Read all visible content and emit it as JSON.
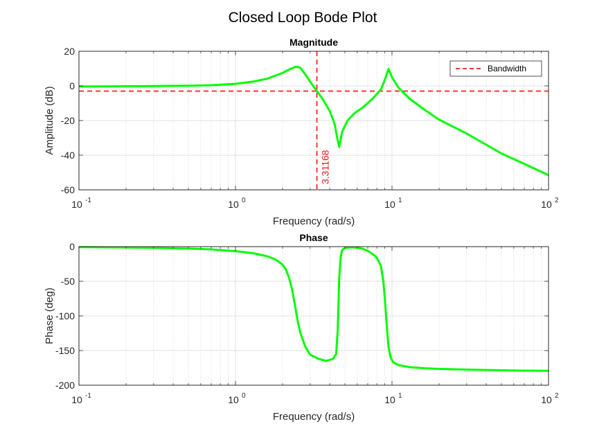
{
  "figure_title": "Closed Loop Bode Plot",
  "chart_data": [
    {
      "type": "line",
      "title": "Magnitude",
      "xlabel": "Frequency (rad/s)",
      "ylabel": "Amplitude (dB)",
      "xscale": "log",
      "xlim": [
        0.1,
        100
      ],
      "ylim": [
        -60,
        20
      ],
      "yticks": [
        20,
        0,
        -20,
        -40,
        -60
      ],
      "xticks": [
        {
          "base": "10",
          "exp": "-1"
        },
        {
          "base": "10",
          "exp": "0"
        },
        {
          "base": "10",
          "exp": "1"
        },
        {
          "base": "10",
          "exp": "2"
        }
      ],
      "grid": true,
      "legend": {
        "position": "top-right",
        "entries": [
          "Bandwidth"
        ]
      },
      "line_color": "#00ff00",
      "reference_color": "#ff3333",
      "bandwidth_line_db": -3,
      "bandwidth_frequency": 3.31168,
      "annotation": "3.31168",
      "series": [
        {
          "x": [
            0.1,
            0.2,
            0.3,
            0.5,
            0.7,
            1.0,
            1.3,
            1.6,
            2.0,
            2.2,
            2.4,
            2.5,
            2.6,
            2.8,
            3.0,
            3.31168,
            3.6,
            4.0,
            4.3,
            4.5,
            4.6,
            4.8,
            5.2,
            5.8,
            6.5,
            7.5,
            8.5,
            9.0,
            9.5,
            10.0,
            11.0,
            13.0,
            16.0,
            20.0,
            30.0,
            50.0,
            70.0,
            100.0
          ],
          "y": [
            -0.3,
            -0.2,
            -0.1,
            0.1,
            0.4,
            1.2,
            2.5,
            4.2,
            7.5,
            9.5,
            10.9,
            11.0,
            10.4,
            6.5,
            2.5,
            -3.0,
            -7.5,
            -14.5,
            -22.0,
            -31.5,
            -35.2,
            -26.5,
            -20.0,
            -15.5,
            -12.5,
            -7.5,
            -2.0,
            3.5,
            9.8,
            5.0,
            -1.0,
            -7.5,
            -13.5,
            -19.5,
            -27.5,
            -39.0,
            -45.0,
            -51.5
          ]
        }
      ]
    },
    {
      "type": "line",
      "title": "Phase",
      "xlabel": "Frequency (rad/s)",
      "ylabel": "Phase (deg)",
      "xscale": "log",
      "xlim": [
        0.1,
        100
      ],
      "ylim": [
        -200,
        0
      ],
      "yticks": [
        0,
        -50,
        -100,
        -150,
        -200
      ],
      "xticks": [
        {
          "base": "10",
          "exp": "-1"
        },
        {
          "base": "10",
          "exp": "0"
        },
        {
          "base": "10",
          "exp": "1"
        },
        {
          "base": "10",
          "exp": "2"
        }
      ],
      "grid": true,
      "line_color": "#00ff00",
      "series": [
        {
          "x": [
            0.1,
            0.2,
            0.3,
            0.5,
            0.7,
            1.0,
            1.3,
            1.6,
            1.8,
            2.0,
            2.1,
            2.2,
            2.3,
            2.4,
            2.5,
            2.6,
            2.8,
            3.0,
            3.4,
            3.8,
            4.2,
            4.4,
            4.5,
            4.6,
            4.7,
            4.8,
            5.0,
            5.5,
            6.0,
            6.5,
            7.0,
            7.5,
            8.0,
            8.5,
            8.8,
            9.0,
            9.3,
            9.5,
            9.8,
            10.2,
            11.0,
            13.0,
            16.0,
            20.0,
            30.0,
            50.0,
            70.0,
            100.0
          ],
          "y": [
            -0.6,
            -1.2,
            -1.8,
            -2.8,
            -4.0,
            -6.5,
            -9.5,
            -14.0,
            -18.5,
            -26.0,
            -33.0,
            -45.0,
            -62.0,
            -85.0,
            -108.0,
            -125.0,
            -145.0,
            -156.0,
            -162.0,
            -165.0,
            -162.0,
            -155.0,
            -120.0,
            -45.0,
            -15.0,
            -5.0,
            -2.0,
            -1.0,
            -1.5,
            -3.0,
            -6.0,
            -10.5,
            -16.0,
            -28.0,
            -50.0,
            -75.0,
            -120.0,
            -145.0,
            -160.0,
            -167.0,
            -171.0,
            -174.0,
            -175.5,
            -176.5,
            -177.5,
            -178.5,
            -179.0,
            -179.3
          ]
        }
      ]
    }
  ]
}
